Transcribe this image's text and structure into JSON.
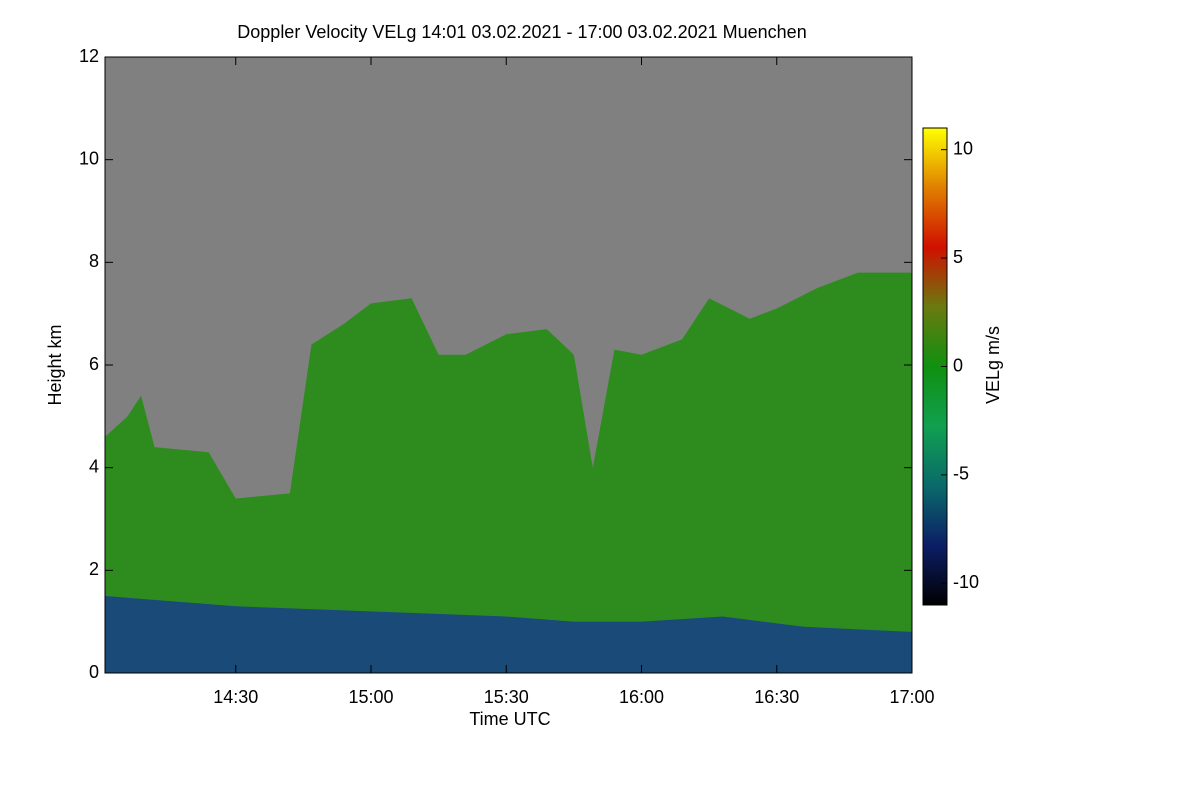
{
  "chart_data": {
    "type": "time-height",
    "title": "Doppler Velocity VELg   14:01 03.02.2021 - 17:00 03.02.2021 Muenchen",
    "xlabel": "Time UTC",
    "ylabel": "Height km",
    "xlim": [
      14.0167,
      17.0
    ],
    "xticks": [
      {
        "value": 14.5,
        "label": "14:30"
      },
      {
        "value": 15.0,
        "label": "15:00"
      },
      {
        "value": 15.5,
        "label": "15:30"
      },
      {
        "value": 16.0,
        "label": "16:00"
      },
      {
        "value": 16.5,
        "label": "16:30"
      },
      {
        "value": 17.0,
        "label": "17:00"
      }
    ],
    "ylim": [
      0,
      12
    ],
    "yticks": [
      0,
      2,
      4,
      6,
      8,
      10,
      12
    ],
    "background": "#808080",
    "echo_top": {
      "color": "#2e8c1e",
      "x": [
        14.0167,
        14.1,
        14.15,
        14.2,
        14.4,
        14.5,
        14.7,
        14.78,
        14.9,
        15.0,
        15.15,
        15.25,
        15.35,
        15.5,
        15.65,
        15.75,
        15.82,
        15.9,
        16.0,
        16.15,
        16.25,
        16.4,
        16.5,
        16.65,
        16.8,
        16.9,
        17.0
      ],
      "values": [
        4.6,
        5.0,
        5.4,
        4.4,
        4.3,
        3.4,
        3.5,
        6.4,
        6.8,
        7.2,
        7.3,
        6.2,
        6.2,
        6.6,
        6.7,
        6.2,
        4.0,
        6.3,
        6.2,
        6.5,
        7.3,
        6.9,
        7.1,
        7.5,
        7.8,
        7.8,
        7.8
      ]
    },
    "layer_top": {
      "color": "#1a4a78",
      "x": [
        14.0167,
        14.5,
        15.0,
        15.5,
        15.75,
        15.8,
        16.0,
        16.3,
        16.6,
        17.0
      ],
      "values": [
        1.5,
        1.3,
        1.2,
        1.1,
        1.0,
        1.0,
        1.0,
        1.1,
        0.9,
        0.8
      ]
    },
    "colorbar": {
      "label": "VELg m/s",
      "clim": [
        -11,
        11
      ],
      "ticks": [
        -10,
        -5,
        0,
        5,
        10
      ],
      "colormap": [
        "#000000",
        "#0c1e66",
        "#0a6a6a",
        "#10a050",
        "#109010",
        "#6a7a10",
        "#d01000",
        "#e08000",
        "#ffff00"
      ]
    }
  }
}
